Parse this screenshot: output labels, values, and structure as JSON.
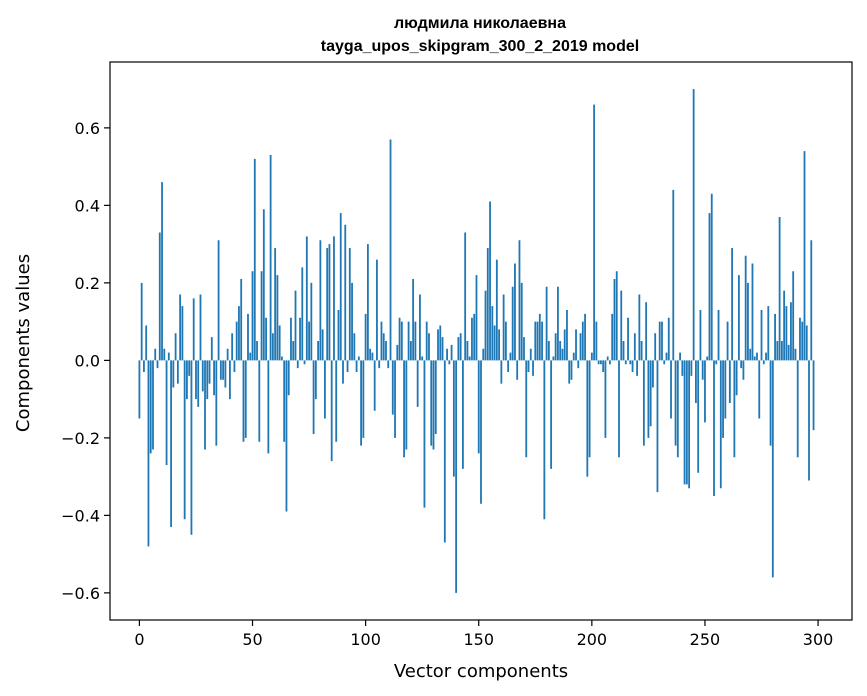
{
  "chart_data": {
    "type": "bar",
    "title": "людмила николаевна",
    "subtitle": "tayga_upos_skipgram_300_2_2019 model",
    "xlabel": "Vector components",
    "ylabel": "Components values",
    "xlim": [
      -13,
      315
    ],
    "ylim": [
      -0.67,
      0.77
    ],
    "xticks": [
      0,
      50,
      100,
      150,
      200,
      250,
      300
    ],
    "xtick_labels": [
      "0",
      "50",
      "100",
      "150",
      "200",
      "250",
      "300"
    ],
    "yticks": [
      -0.6,
      -0.4,
      -0.2,
      0.0,
      0.2,
      0.4,
      0.6
    ],
    "ytick_labels": [
      "−0.6",
      "−0.4",
      "−0.2",
      "0.0",
      "0.2",
      "0.4",
      "0.6"
    ],
    "bar_color": "#1f77b4",
    "series": [
      {
        "name": "components",
        "x_start": 0,
        "values": [
          -0.15,
          0.2,
          -0.03,
          0.09,
          -0.48,
          -0.24,
          -0.23,
          0.03,
          -0.02,
          0.33,
          0.46,
          0.03,
          -0.27,
          0.02,
          -0.43,
          -0.07,
          0.07,
          -0.06,
          0.17,
          0.14,
          -0.41,
          -0.1,
          -0.04,
          -0.45,
          0.16,
          -0.1,
          -0.12,
          0.17,
          -0.08,
          -0.23,
          -0.1,
          -0.06,
          0.06,
          -0.09,
          -0.22,
          0.31,
          -0.05,
          -0.05,
          -0.07,
          0.03,
          -0.1,
          0.07,
          -0.03,
          0.1,
          0.14,
          0.21,
          -0.21,
          -0.2,
          0.12,
          0.02,
          0.23,
          0.52,
          0.05,
          -0.21,
          0.23,
          0.39,
          0.11,
          -0.24,
          0.53,
          0.07,
          0.29,
          0.22,
          0.09,
          0.01,
          -0.21,
          -0.39,
          -0.09,
          0.11,
          0.05,
          0.18,
          -0.02,
          0.11,
          0.24,
          -0.01,
          0.32,
          0.1,
          0.2,
          -0.19,
          -0.1,
          0.05,
          0.31,
          0.08,
          -0.15,
          0.29,
          0.3,
          -0.26,
          0.32,
          -0.21,
          0.13,
          0.38,
          -0.06,
          0.35,
          -0.03,
          0.29,
          0.2,
          0.07,
          -0.03,
          0.01,
          -0.22,
          -0.2,
          0.12,
          0.3,
          0.03,
          0.02,
          -0.13,
          0.26,
          -0.02,
          0.1,
          0.07,
          0.05,
          -0.02,
          0.57,
          -0.14,
          -0.2,
          0.04,
          0.11,
          0.1,
          -0.25,
          -0.23,
          0.1,
          0.05,
          0.21,
          0.1,
          -0.12,
          0.17,
          0.01,
          -0.38,
          0.1,
          0.07,
          -0.22,
          -0.23,
          -0.19,
          0.08,
          0.09,
          0.06,
          -0.47,
          0.03,
          -0.01,
          0.04,
          -0.3,
          -0.6,
          0.06,
          0.07,
          -0.28,
          0.33,
          0.05,
          0.01,
          0.11,
          0.12,
          0.22,
          -0.24,
          -0.37,
          0.03,
          0.18,
          0.29,
          0.41,
          0.14,
          0.09,
          0.26,
          0.08,
          -0.06,
          0.17,
          0.1,
          -0.03,
          0.02,
          0.19,
          0.25,
          -0.05,
          0.31,
          0.2,
          0.06,
          -0.25,
          -0.03,
          0.03,
          -0.04,
          0.1,
          0.1,
          0.12,
          0.1,
          -0.41,
          0.19,
          0.05,
          -0.28,
          0.01,
          0.07,
          0.19,
          0.05,
          0.03,
          0.08,
          0.13,
          -0.06,
          -0.05,
          0.02,
          0.08,
          -0.02,
          0.07,
          0.1,
          0.12,
          -0.3,
          -0.25,
          0.02,
          0.66,
          0.1,
          -0.01,
          -0.01,
          -0.03,
          -0.2,
          0.01,
          -0.01,
          0.12,
          0.21,
          0.23,
          -0.25,
          0.18,
          0.05,
          -0.01,
          0.11,
          -0.01,
          -0.03,
          0.07,
          -0.04,
          0.17,
          0.05,
          -0.22,
          0.15,
          -0.2,
          -0.17,
          -0.07,
          0.07,
          -0.34,
          0.1,
          0.1,
          -0.01,
          0.02,
          0.11,
          -0.15,
          0.44,
          -0.22,
          -0.25,
          0.02,
          -0.04,
          -0.32,
          -0.32,
          -0.33,
          -0.04,
          0.7,
          -0.11,
          -0.29,
          0.13,
          -0.05,
          -0.16,
          0.01,
          0.38,
          0.43,
          -0.35,
          -0.01,
          0.13,
          -0.33,
          -0.2,
          -0.15,
          0.1,
          -0.11,
          0.29,
          -0.25,
          -0.09,
          0.22,
          -0.02,
          -0.05,
          0.27,
          0.2,
          0.03,
          0.25,
          0.01,
          0.02,
          -0.15,
          0.13,
          -0.01,
          0.02,
          0.14,
          -0.22,
          -0.56,
          0.12,
          0.05,
          0.37,
          0.05,
          0.18,
          0.14,
          0.04,
          0.15,
          0.23,
          0.03,
          -0.25,
          0.11,
          0.1,
          0.54,
          0.09,
          -0.31,
          0.31,
          -0.18
        ]
      }
    ]
  }
}
